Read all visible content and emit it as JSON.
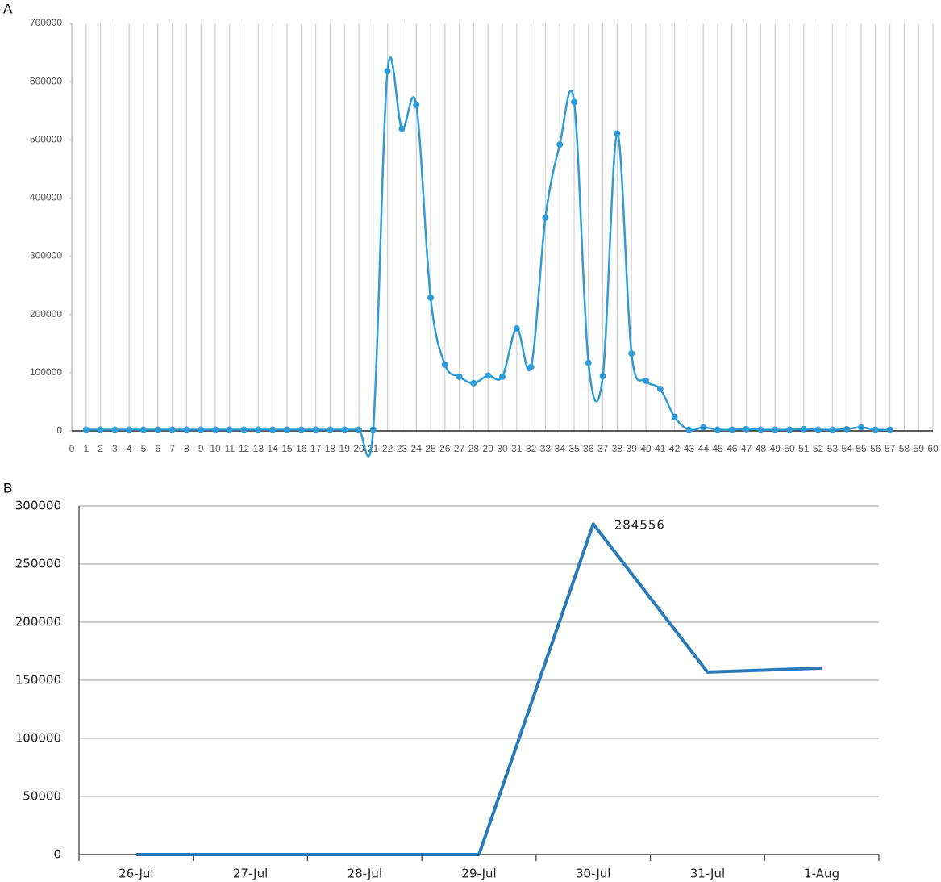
{
  "chart_data": [
    {
      "type": "line",
      "panel_label": "A",
      "smooth": true,
      "markers": true,
      "grid": "x",
      "color": "#2e9bd6",
      "x": [
        1,
        2,
        3,
        4,
        5,
        6,
        7,
        8,
        9,
        10,
        11,
        12,
        13,
        14,
        15,
        16,
        17,
        18,
        19,
        20,
        21,
        22,
        23,
        24,
        25,
        26,
        27,
        28,
        29,
        30,
        31,
        32,
        33,
        34,
        35,
        36,
        37,
        38,
        39,
        40,
        41,
        42,
        43,
        44,
        45,
        46,
        47,
        48,
        49,
        50,
        51,
        52,
        53,
        54,
        55,
        56,
        57
      ],
      "values": [
        2000,
        2000,
        2000,
        2000,
        2000,
        2000,
        2000,
        2000,
        2000,
        2000,
        2000,
        2000,
        2000,
        2000,
        2000,
        2000,
        2000,
        2000,
        2000,
        2000,
        2000,
        618000,
        519000,
        560000,
        229000,
        114000,
        93000,
        82000,
        95000,
        93000,
        176000,
        110000,
        366000,
        492000,
        565000,
        117000,
        94000,
        511000,
        133000,
        86000,
        72000,
        24000,
        2000,
        6000,
        2000,
        2000,
        3000,
        2000,
        2000,
        2000,
        3000,
        2000,
        2000,
        3000,
        6000,
        2000,
        2000
      ],
      "xlim": [
        0,
        60
      ],
      "xticks": [
        0,
        1,
        2,
        3,
        4,
        5,
        6,
        7,
        8,
        9,
        10,
        11,
        12,
        13,
        14,
        15,
        16,
        17,
        18,
        19,
        20,
        21,
        22,
        23,
        24,
        25,
        26,
        27,
        28,
        29,
        30,
        31,
        32,
        33,
        34,
        35,
        36,
        37,
        38,
        39,
        40,
        41,
        42,
        43,
        44,
        45,
        46,
        47,
        48,
        49,
        50,
        51,
        52,
        53,
        54,
        55,
        56,
        57,
        58,
        59,
        60
      ],
      "ylim": [
        0,
        700000
      ],
      "yticks": [
        0,
        100000,
        200000,
        300000,
        400000,
        500000,
        600000,
        700000
      ]
    },
    {
      "type": "line",
      "panel_label": "B",
      "smooth": false,
      "markers": false,
      "grid": "y",
      "color": "#2a7ab8",
      "categories": [
        "26-Jul",
        "27-Jul",
        "28-Jul",
        "29-Jul",
        "30-Jul",
        "31-Jul",
        "1-Aug"
      ],
      "values": [
        0,
        0,
        0,
        0,
        284556,
        157000,
        160500
      ],
      "labeled_point": 4,
      "ylim": [
        0,
        300000
      ],
      "yticks": [
        0,
        50000,
        100000,
        150000,
        200000,
        250000,
        300000
      ]
    }
  ]
}
